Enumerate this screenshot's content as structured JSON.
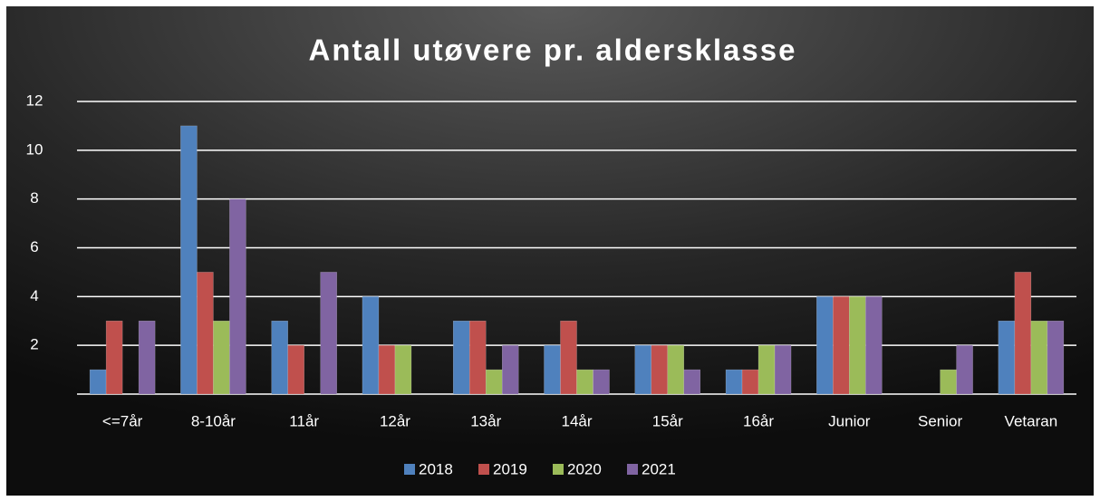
{
  "chart_data": {
    "type": "bar",
    "title": "Antall utøvere pr. aldersklasse",
    "categories": [
      "<=7år",
      "8-10år",
      "11år",
      "12år",
      "13år",
      "14år",
      "15år",
      "16år",
      "Junior",
      "Senior",
      "Vetaran"
    ],
    "series": [
      {
        "name": "2018",
        "color": "#4f81bd",
        "values": [
          1,
          11,
          3,
          4,
          3,
          2,
          2,
          1,
          4,
          0,
          3
        ]
      },
      {
        "name": "2019",
        "color": "#c0504d",
        "values": [
          3,
          5,
          2,
          2,
          3,
          3,
          2,
          1,
          4,
          0,
          5
        ]
      },
      {
        "name": "2020",
        "color": "#9bbb59",
        "values": [
          0,
          3,
          0,
          2,
          1,
          1,
          2,
          2,
          4,
          1,
          3
        ]
      },
      {
        "name": "2021",
        "color": "#8064a2",
        "values": [
          3,
          8,
          5,
          0,
          2,
          1,
          1,
          2,
          4,
          2,
          3
        ]
      }
    ],
    "ylim": [
      0,
      12
    ],
    "yticks": [
      2,
      4,
      6,
      8,
      10,
      12
    ],
    "grid": true,
    "legend": "bottom"
  }
}
